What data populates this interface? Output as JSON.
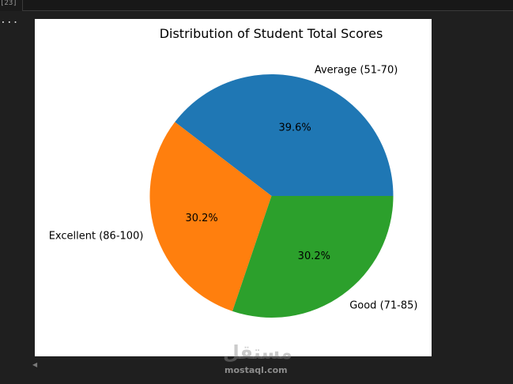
{
  "cell": {
    "execution_count": "[23]",
    "output_toggle": "..."
  },
  "watermark": {
    "text": "mostaql.com"
  },
  "chart_data": {
    "type": "pie",
    "title": "Distribution of Student Total Scores",
    "slices": [
      {
        "label": "Average (51-70)",
        "value": 39.6,
        "pct_label": "39.6%",
        "color": "#1f77b4"
      },
      {
        "label": "Excellent (86-100)",
        "value": 30.2,
        "pct_label": "30.2%",
        "color": "#ff7f0e"
      },
      {
        "label": "Good (71-85)",
        "value": 30.2,
        "pct_label": "30.2%",
        "color": "#2ca02c"
      }
    ],
    "start_angle_deg": 0,
    "direction": "counterclockwise",
    "legend": "none"
  }
}
